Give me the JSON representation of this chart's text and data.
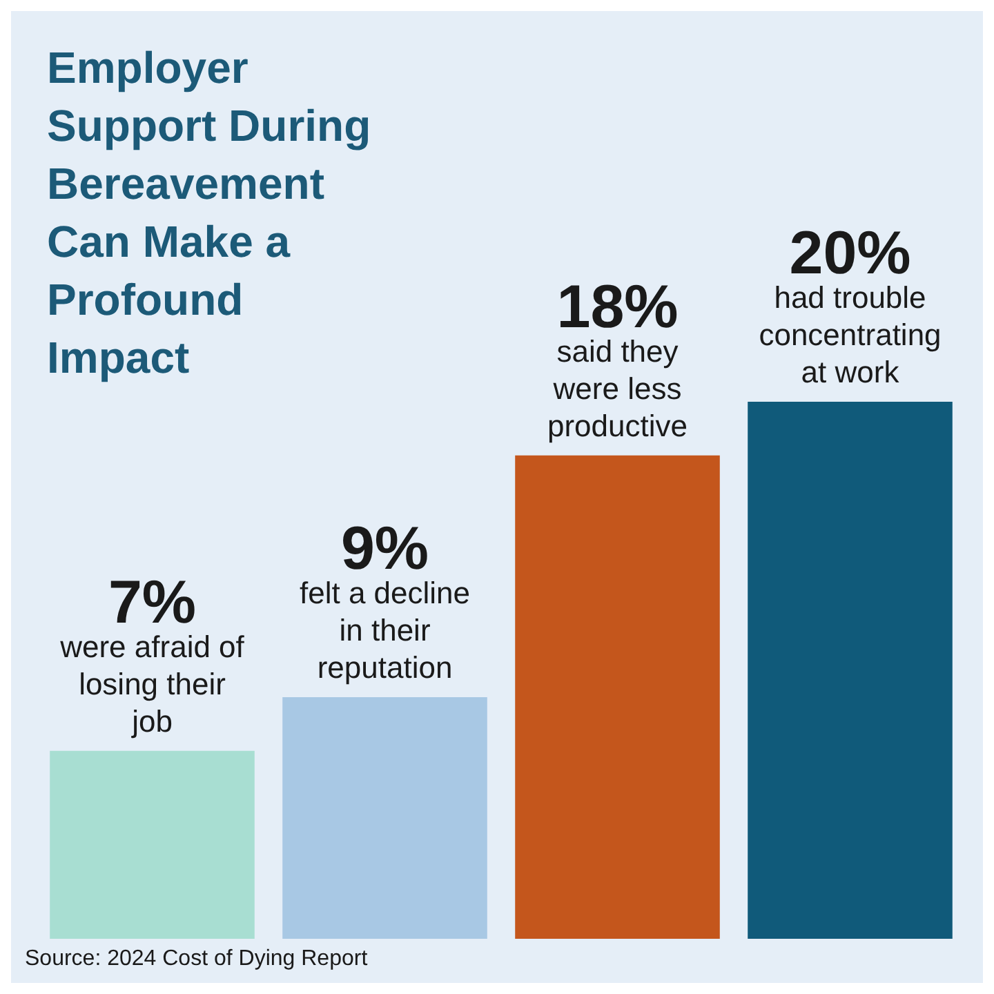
{
  "chart_data": {
    "type": "bar",
    "title": "Employer Support During Bereavement Can Make a Profound Impact",
    "categories": [
      "were afraid of losing their job",
      "felt a decline in their reputation",
      "said they were less productive",
      "had trouble concentrating at work"
    ],
    "values": [
      7,
      9,
      18,
      20
    ],
    "value_labels": [
      "7%",
      "9%",
      "18%",
      "20%"
    ],
    "colors": [
      "#a8ded2",
      "#a8c8e4",
      "#c4561c",
      "#105a7a"
    ],
    "annotations": [
      "Source: 2024 Cost of Dying Report"
    ]
  }
}
